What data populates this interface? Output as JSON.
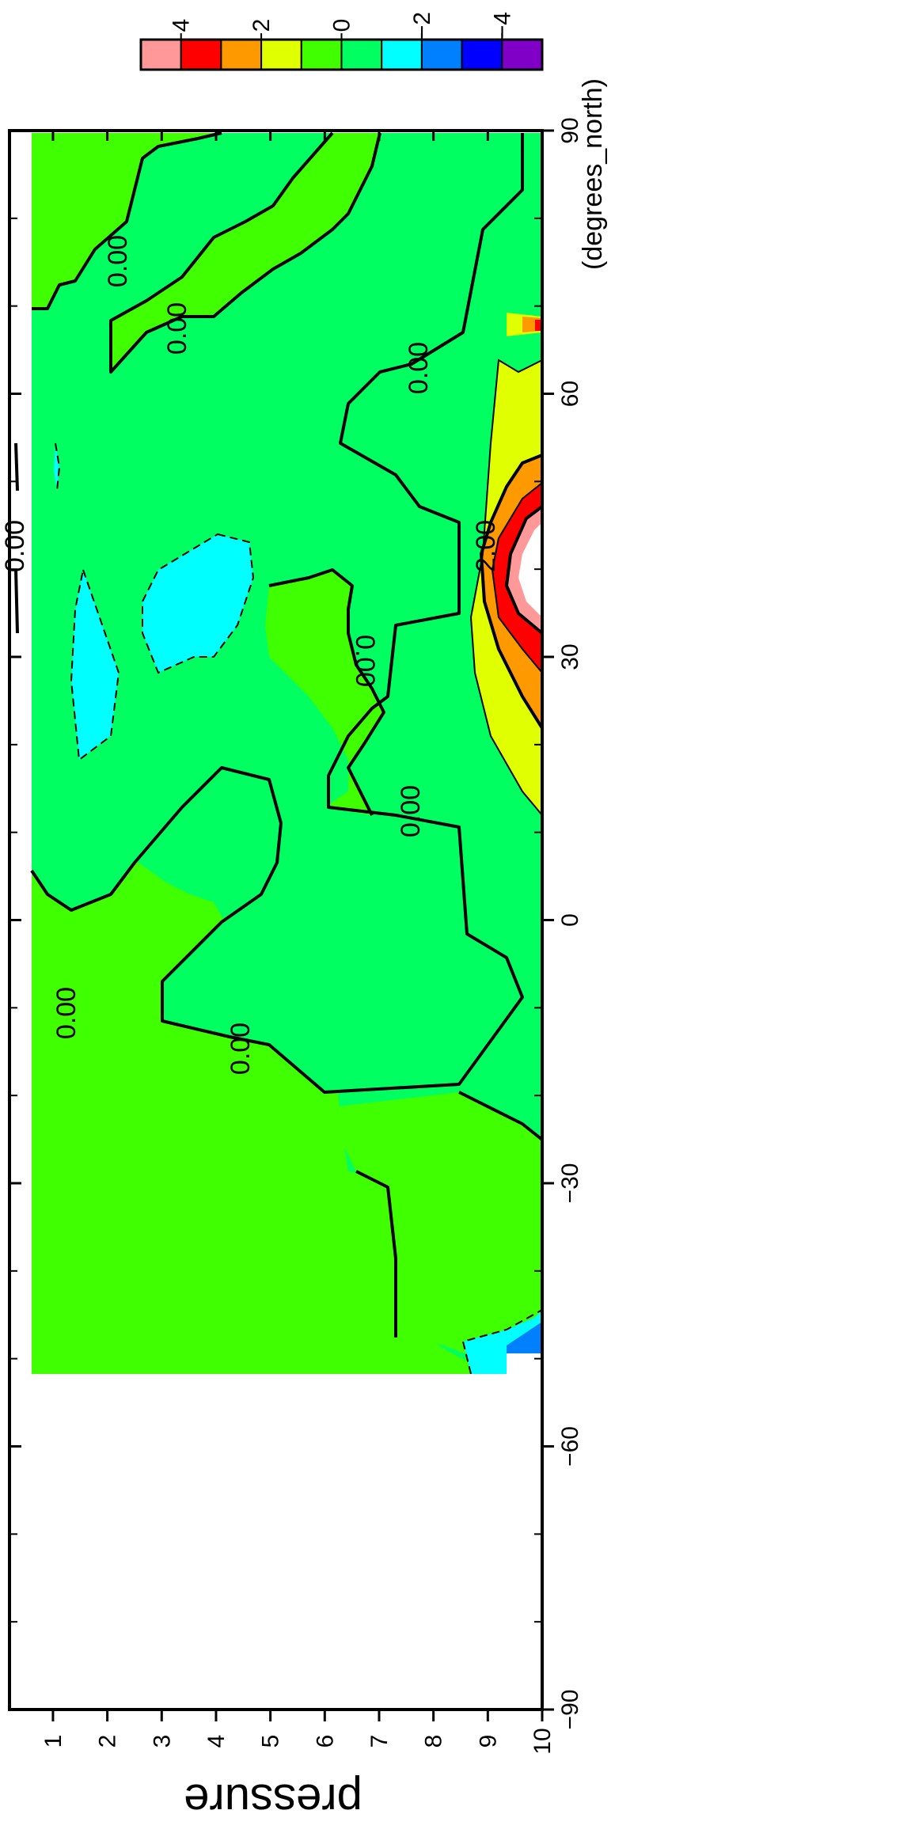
{
  "chart_data": {
    "type": "contour",
    "orientation": "rotated-90-clockwise",
    "x_axis": {
      "label": "(degrees_north)",
      "range": [
        -90,
        90
      ],
      "ticks": [
        -90,
        -60,
        -30,
        0,
        30,
        60,
        90
      ],
      "tick_labels": [
        "−90",
        "−60",
        "−30",
        "0",
        "30",
        "60",
        "90"
      ]
    },
    "y_axis": {
      "label": "pressure",
      "range": [
        0.2,
        10
      ],
      "ticks": [
        1,
        2,
        3,
        4,
        5,
        6,
        7,
        8,
        9,
        10
      ],
      "tick_labels": [
        "1",
        "2",
        "3",
        "4",
        "5",
        "6",
        "7",
        "8",
        "9",
        "10"
      ]
    },
    "colorbar": {
      "levels": [
        -5,
        -4,
        -3,
        -2,
        -1,
        0,
        1,
        2,
        3,
        4,
        5
      ],
      "tick_values": [
        4,
        2,
        0,
        -2,
        -4
      ],
      "tick_labels": [
        "4",
        "2",
        "0",
        "−2",
        "−4"
      ],
      "colors": [
        "#8000c8",
        "#0000ff",
        "#0080ff",
        "#00ffff",
        "#00ff60",
        "#40ff00",
        "#e0ff00",
        "#ff9900",
        "#ff0000",
        "#ff9999"
      ]
    },
    "contour_labels": [
      "0.00",
      "0.00",
      "0.00",
      "0.00",
      "0.00",
      "0.00",
      "0.00",
      "0.00",
      "2.00"
    ],
    "regions": [
      {
        "level": "0 to 1",
        "color": "#40ff00",
        "description": "background field"
      },
      {
        "level": "-1 to 0",
        "color": "#00ff60"
      },
      {
        "level": "-2 to -1",
        "color": "#00ffff"
      },
      {
        "level": "1 to 2",
        "color": "#e0ff00"
      },
      {
        "level": "2 to 3",
        "color": "#ff9900"
      },
      {
        "level": "3 to 4",
        "color": "#ff0000"
      },
      {
        "level": "4 to 5",
        "color": "#ff9999"
      },
      {
        "level": "-3 to -2",
        "color": "#0080ff"
      }
    ]
  }
}
